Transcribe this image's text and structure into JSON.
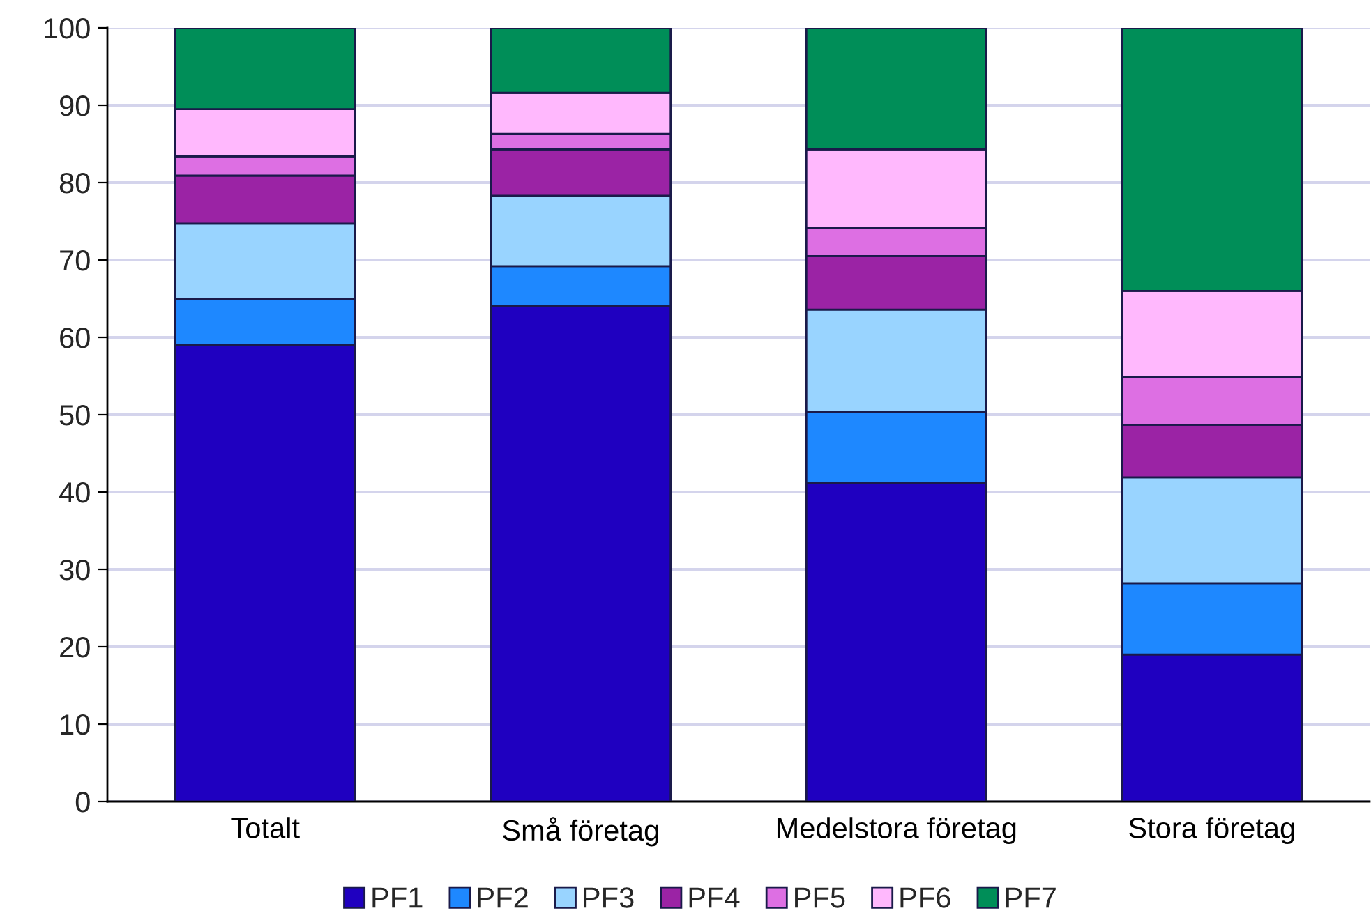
{
  "chart_data": {
    "type": "bar",
    "stacked": true,
    "categories": [
      "Totalt",
      "Små företag",
      "Medelstora företag",
      "Stora företag"
    ],
    "series": [
      {
        "name": "PF1",
        "color": "#1f00c0",
        "values": [
          59.0,
          64.1,
          41.2,
          19.0
        ]
      },
      {
        "name": "PF2",
        "color": "#1e88ff",
        "values": [
          6.0,
          5.1,
          9.2,
          9.2
        ]
      },
      {
        "name": "PF3",
        "color": "#99d4ff",
        "values": [
          9.7,
          9.1,
          13.2,
          13.7
        ]
      },
      {
        "name": "PF4",
        "color": "#9b23a5",
        "values": [
          6.2,
          6.0,
          6.9,
          6.8
        ]
      },
      {
        "name": "PF5",
        "color": "#dd6fe3",
        "values": [
          2.5,
          2.0,
          3.6,
          6.2
        ]
      },
      {
        "name": "PF6",
        "color": "#ffb8fd",
        "values": [
          6.1,
          5.3,
          10.2,
          11.1
        ]
      },
      {
        "name": "PF7",
        "color": "#008e58",
        "values": [
          10.5,
          8.4,
          15.7,
          34.0
        ]
      }
    ],
    "ylim": [
      0,
      100
    ],
    "yticks": [
      0,
      10,
      20,
      30,
      40,
      50,
      60,
      70,
      80,
      90,
      100
    ],
    "grid": "y",
    "legend": "bottom"
  }
}
